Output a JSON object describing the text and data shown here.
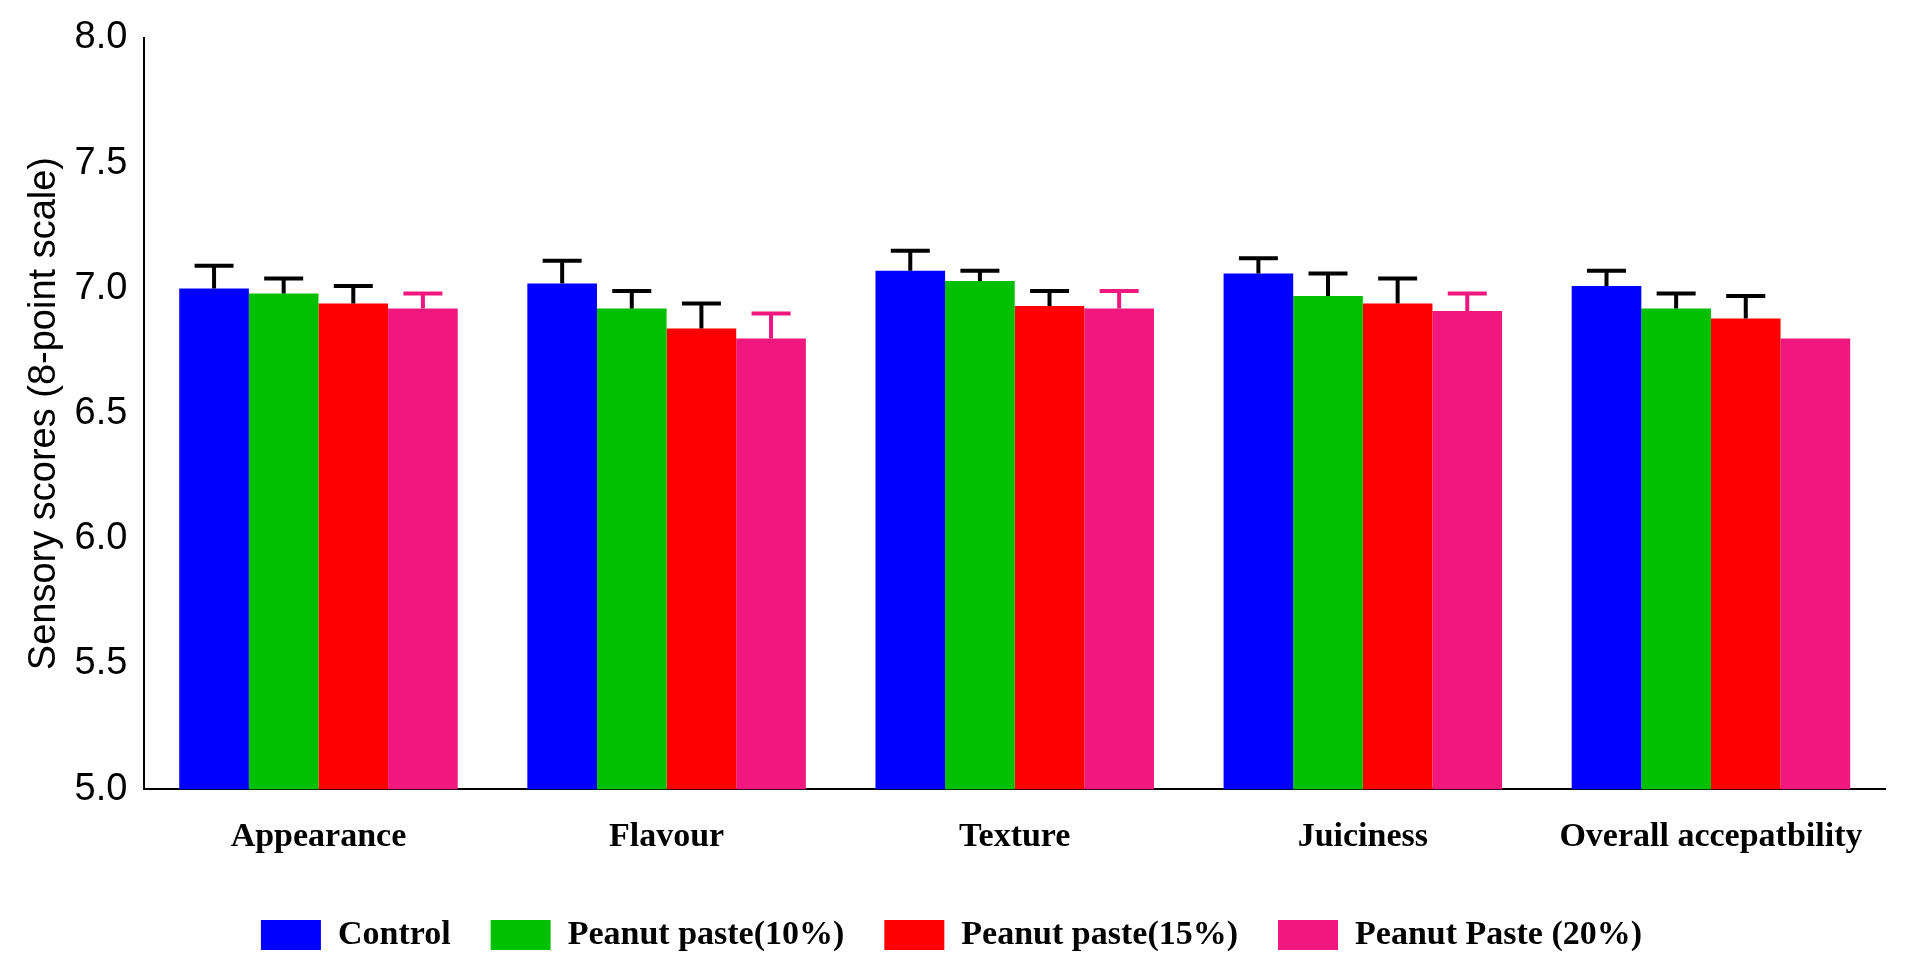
{
  "chart_data": {
    "type": "bar",
    "ylabel": "Sensory scores (8-point scale)",
    "categories": [
      "Appearance",
      "Flavour",
      "Texture",
      "Juiciness",
      "Overall accepatbility"
    ],
    "series": [
      {
        "name": "Control",
        "color": "#0000ff",
        "values": [
          7.0,
          7.02,
          7.07,
          7.06,
          7.01
        ],
        "errors": [
          [
            7.0,
            7.09
          ],
          [
            7.02,
            7.11
          ],
          [
            7.07,
            7.15
          ],
          [
            7.06,
            7.12
          ],
          [
            7.01,
            7.07
          ]
        ]
      },
      {
        "name": "Peanut paste(10%)",
        "color": "#00c000",
        "values": [
          6.98,
          6.92,
          7.03,
          6.97,
          6.92
        ],
        "errors": [
          [
            6.98,
            7.04
          ],
          [
            6.92,
            6.99
          ],
          [
            7.03,
            7.07
          ],
          [
            6.97,
            7.06
          ],
          [
            6.92,
            6.98
          ]
        ]
      },
      {
        "name": "Peanut paste(15%)",
        "color": "#ff0000",
        "values": [
          6.94,
          6.84,
          6.93,
          6.94,
          6.88
        ],
        "errors": [
          [
            6.94,
            7.01
          ],
          [
            6.84,
            6.94
          ],
          [
            6.93,
            6.99
          ],
          [
            6.94,
            7.04
          ],
          [
            6.88,
            6.97
          ]
        ]
      },
      {
        "name": "Peanut Paste (20%)",
        "color": "#f0187f",
        "values": [
          6.92,
          6.8,
          6.92,
          6.91,
          6.8
        ],
        "errors": [
          [
            6.92,
            6.98
          ],
          [
            6.8,
            6.9
          ],
          [
            6.92,
            6.99
          ],
          [
            6.91,
            6.98
          ],
          null
        ]
      }
    ],
    "ylim": [
      5.0,
      8.0
    ],
    "yticks": [
      {
        "value": 5,
        "label": "5.0"
      },
      5.5,
      {
        "value": 6,
        "label": "6.0"
      },
      6.5,
      {
        "value": 7,
        "label": "7.0"
      },
      7.5,
      {
        "value": 8,
        "label": "8.0"
      }
    ],
    "legend": "bottom"
  }
}
